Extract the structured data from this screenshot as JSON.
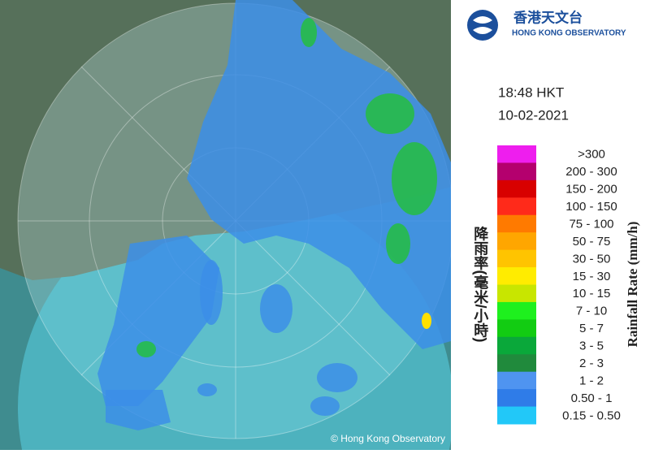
{
  "header": {
    "title_zh": "香港天文台",
    "title_en": "HONG KONG OBSERVATORY"
  },
  "time": "18:48 HKT",
  "date": "10-02-2021",
  "legend": {
    "title_zh": "降雨率(毫米/小時)",
    "title_en": "Rainfall Rate (mm/h)",
    "items": [
      {
        "label": ">300",
        "color": "#ee1eee"
      },
      {
        "label": "200 - 300",
        "color": "#b4006e"
      },
      {
        "label": "150 - 200",
        "color": "#d80000"
      },
      {
        "label": "100 - 150",
        "color": "#ff2a1a"
      },
      {
        "label": "75 - 100",
        "color": "#ff7a00"
      },
      {
        "label": "50 - 75",
        "color": "#ffa600"
      },
      {
        "label": "30 - 50",
        "color": "#ffc400"
      },
      {
        "label": "15 - 30",
        "color": "#ffec00"
      },
      {
        "label": "10 - 15",
        "color": "#c8e600"
      },
      {
        "label": "7 - 10",
        "color": "#1ef01e"
      },
      {
        "label": "5 - 7",
        "color": "#12cc12"
      },
      {
        "label": "3 - 5",
        "color": "#0aa83a"
      },
      {
        "label": "2 - 3",
        "color": "#208a3c"
      },
      {
        "label": "1 - 2",
        "color": "#4f94f0"
      },
      {
        "label": "0.50 - 1",
        "color": "#2f7ce8"
      },
      {
        "label": "0.15 - 0.50",
        "color": "#22c8f8"
      }
    ]
  },
  "copyright": "© Hong Kong Observatory"
}
